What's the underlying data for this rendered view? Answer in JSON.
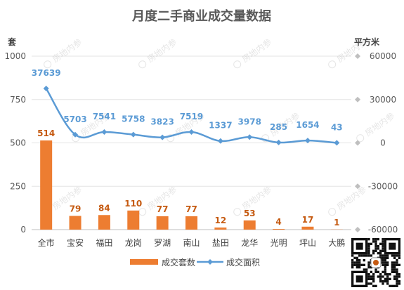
{
  "chart_data": {
    "type": "bar",
    "title": "月度二手商业成交量数据",
    "categories": [
      "全市",
      "宝安",
      "福田",
      "龙岗",
      "罗湖",
      "南山",
      "盐田",
      "龙华",
      "光明",
      "坪山",
      "大鹏"
    ],
    "left_axis": {
      "unit": "套",
      "min": 0,
      "max": 1000,
      "ticks": [
        0,
        250,
        500,
        750,
        1000
      ]
    },
    "right_axis": {
      "unit": "平方米",
      "min": -60000,
      "max": 60000,
      "ticks": [
        "-60000",
        "-30000",
        "0",
        "30000",
        "60000"
      ]
    },
    "series": [
      {
        "name": "成交套数",
        "type": "bar",
        "axis": "left",
        "color": "#ed7d31",
        "values": [
          514,
          79,
          84,
          110,
          77,
          77,
          12,
          53,
          4,
          17,
          1
        ]
      },
      {
        "name": "成交面积",
        "type": "line",
        "axis": "right",
        "color": "#5b9bd5",
        "values": [
          37639,
          5703,
          7541,
          5758,
          3823,
          7519,
          1337,
          3978,
          285,
          1654,
          43
        ]
      }
    ],
    "legend": "bottom",
    "grid": true
  },
  "watermark": "房地内参",
  "qr_code": true
}
